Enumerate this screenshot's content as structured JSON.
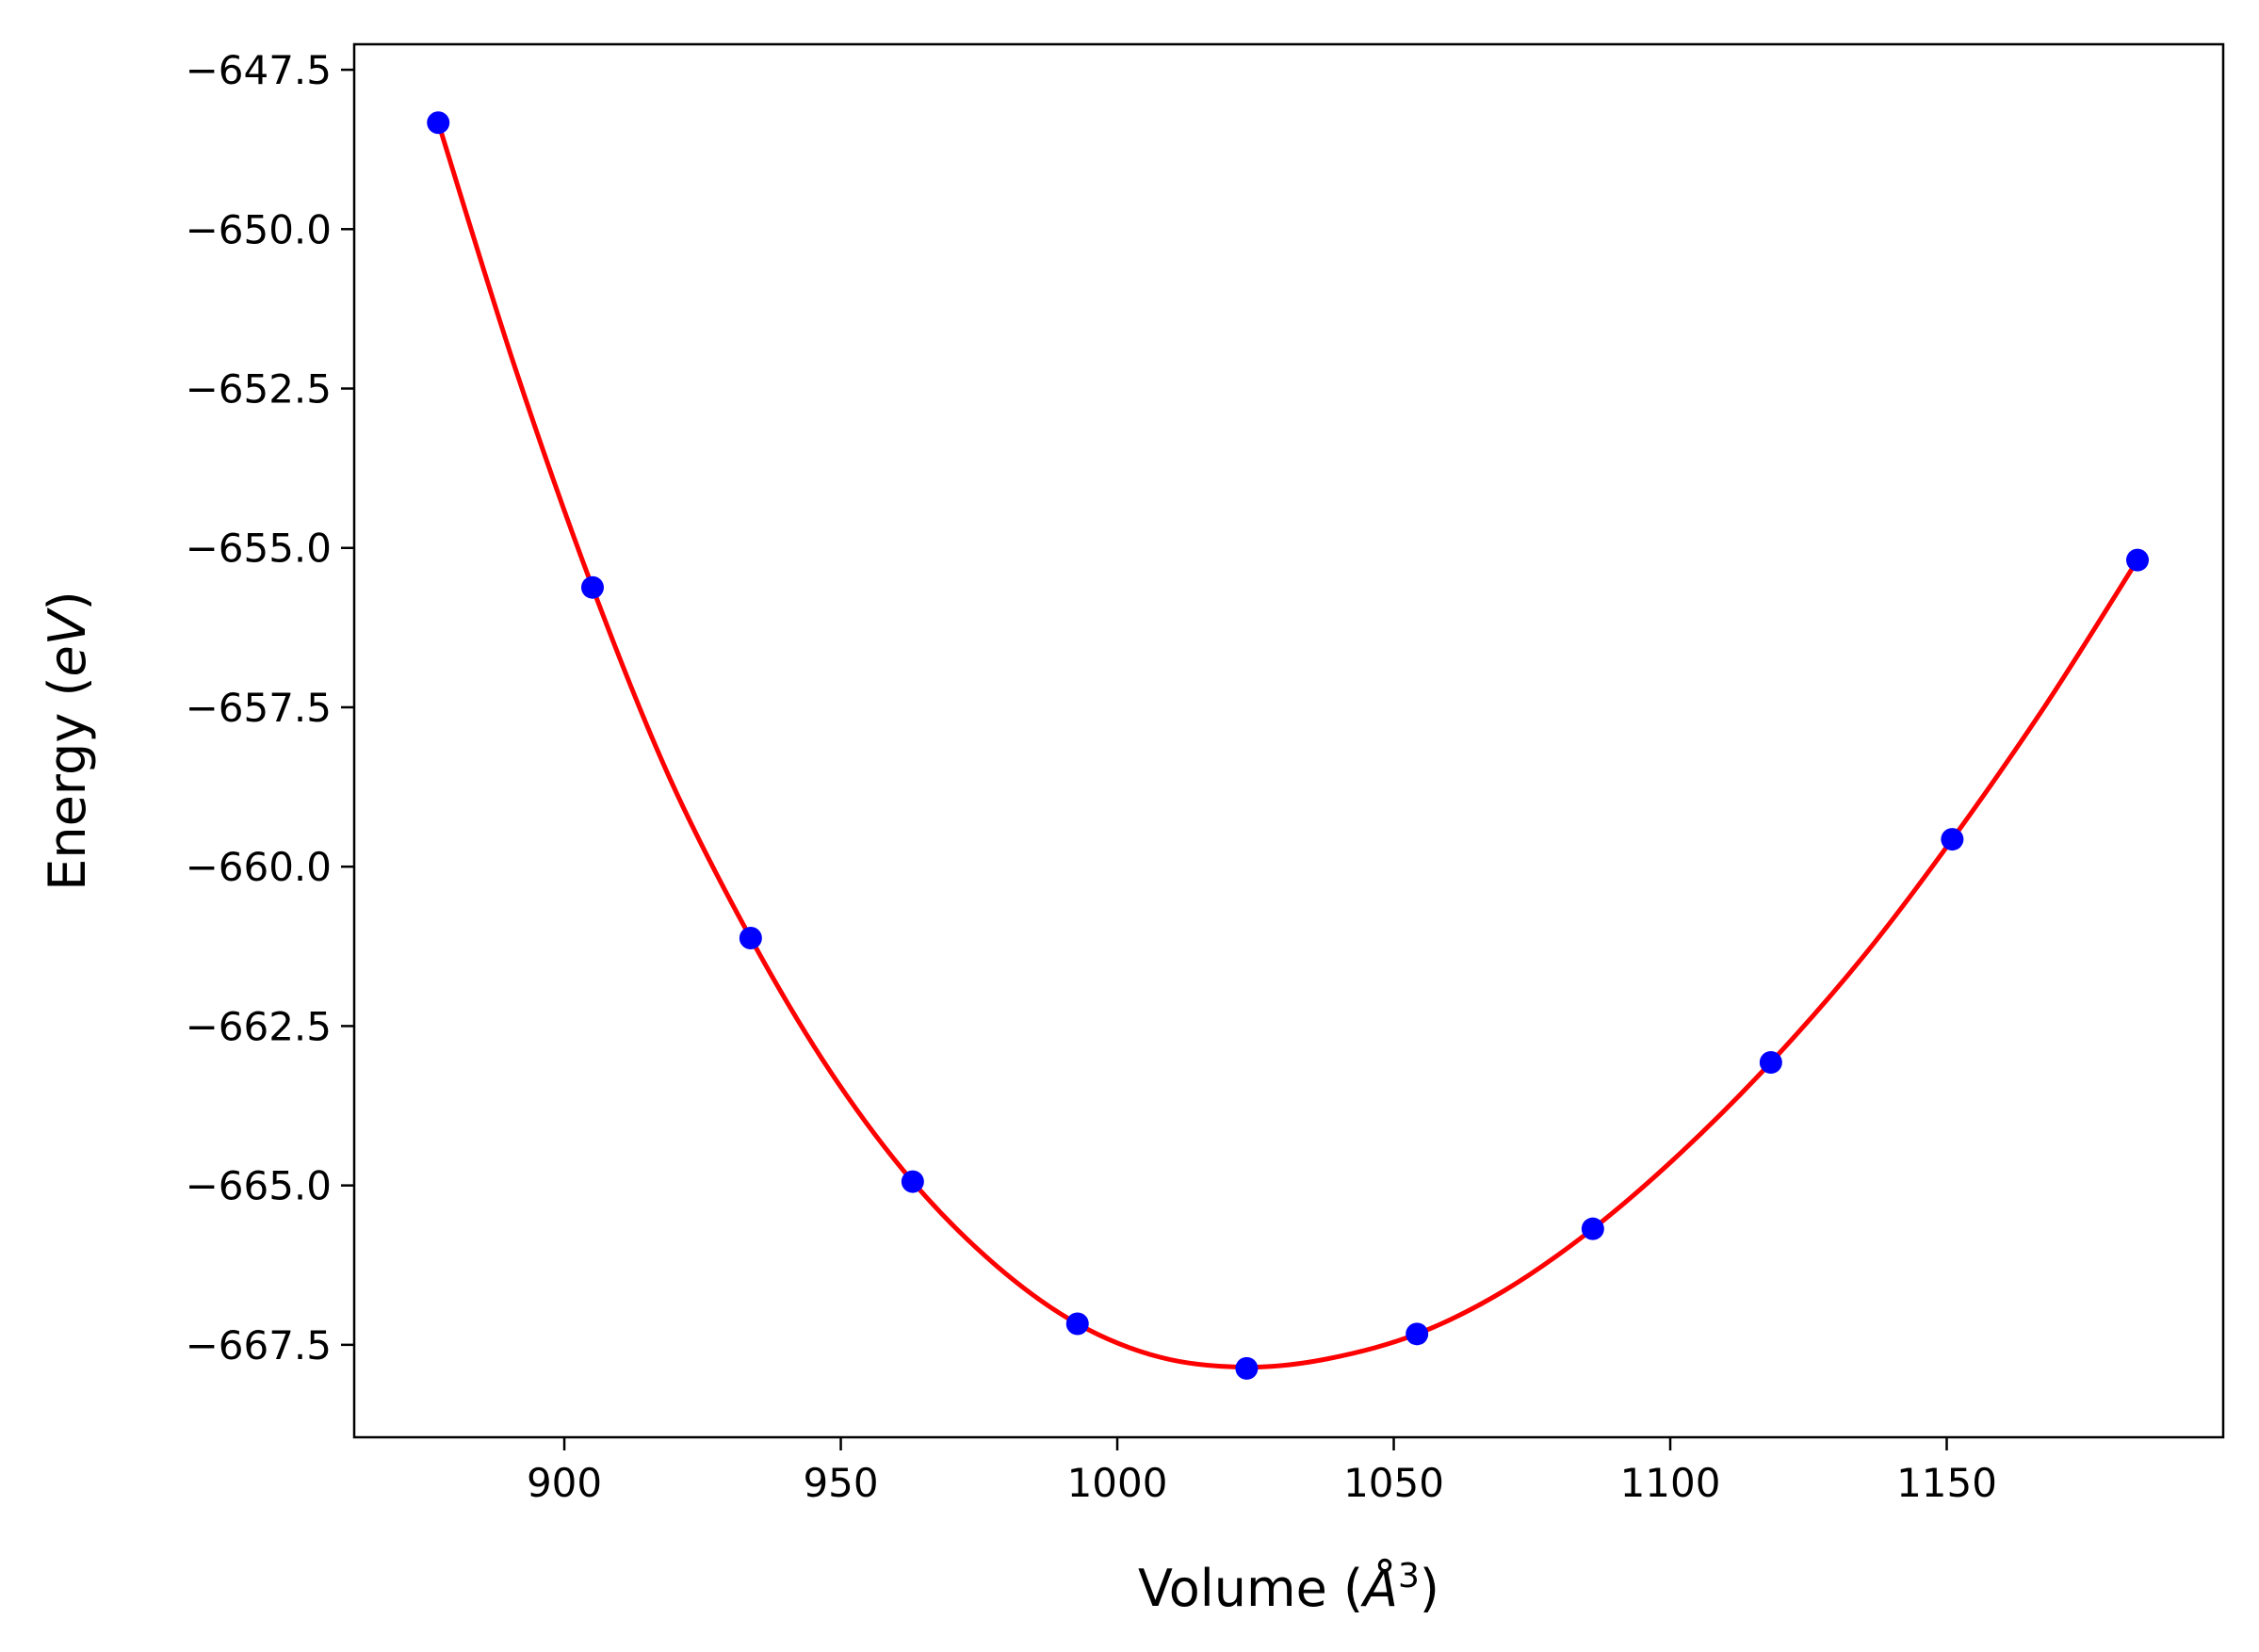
{
  "chart_data": {
    "type": "scatter",
    "xlabel": "Volume (Å³)",
    "xlabel_main": "Volume (",
    "xlabel_sym": "Å",
    "xlabel_sup": "3",
    "xlabel_close": ")",
    "ylabel": "Energy (eV)",
    "ylabel_main": "Energy (",
    "ylabel_unit": "eV",
    "ylabel_close": ")",
    "xlim": [
      862,
      1200
    ],
    "ylim": [
      -668.95,
      -647.1
    ],
    "x_ticks": [
      900,
      950,
      1000,
      1050,
      1100,
      1150
    ],
    "y_ticks": [
      -647.5,
      -650.0,
      -652.5,
      -655.0,
      -657.5,
      -660.0,
      -662.5,
      -665.0,
      -667.5
    ],
    "x_tick_labels": [
      "900",
      "950",
      "1000",
      "1050",
      "1100",
      "1150"
    ],
    "y_tick_labels": [
      "−647.5",
      "−650.0",
      "−652.5",
      "−655.0",
      "−657.5",
      "−660.0",
      "−662.5",
      "−665.0",
      "−667.5"
    ],
    "grid": false,
    "legend": "none",
    "series": [
      {
        "kind": "points",
        "color": "#0000ff",
        "x": [
          877.2,
          905.1,
          933.7,
          963.0,
          992.8,
          1023.4,
          1054.2,
          1086.0,
          1118.2,
          1151.0,
          1184.5
        ],
        "y": [
          -648.33,
          -655.62,
          -661.12,
          -664.94,
          -667.17,
          -667.87,
          -667.33,
          -665.68,
          -663.07,
          -659.57,
          -655.19
        ]
      },
      {
        "kind": "fit-curve",
        "color": "#ff0000",
        "x": [
          877.2,
          891.0,
          905.1,
          919.0,
          933.7,
          948.0,
          963.0,
          978.0,
          992.8,
          1008.0,
          1023.4,
          1038.0,
          1054.2,
          1070.0,
          1086.0,
          1102.0,
          1118.2,
          1135.0,
          1151.0,
          1168.0,
          1184.5
        ],
        "y": [
          -648.33,
          -652.15,
          -655.62,
          -658.6,
          -661.12,
          -663.2,
          -664.94,
          -666.25,
          -667.17,
          -667.7,
          -667.85,
          -667.72,
          -667.33,
          -666.65,
          -665.68,
          -664.48,
          -663.07,
          -661.4,
          -659.57,
          -657.45,
          -655.19
        ]
      }
    ]
  }
}
